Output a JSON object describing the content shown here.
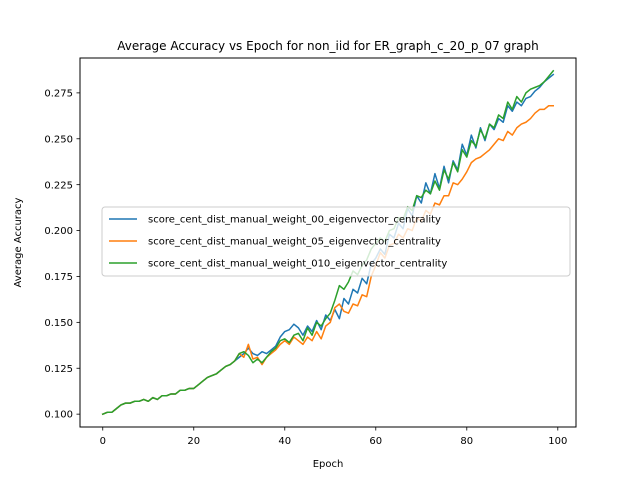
{
  "chart_data": {
    "type": "line",
    "title": "Average Accuracy vs Epoch for non_iid for ER_graph_c_20_p_07 graph",
    "xlabel": "Epoch",
    "ylabel": "Average Accuracy",
    "xlim": [
      -5,
      104
    ],
    "ylim": [
      0.093,
      0.294
    ],
    "xticks": [
      0,
      20,
      40,
      60,
      80,
      100
    ],
    "yticks": [
      0.1,
      0.125,
      0.15,
      0.175,
      0.2,
      0.225,
      0.25,
      0.275
    ],
    "ytick_labels": [
      "0.100",
      "0.125",
      "0.150",
      "0.175",
      "0.200",
      "0.225",
      "0.250",
      "0.275"
    ],
    "grid": false,
    "legend_position": "center-left",
    "x": [
      0,
      1,
      2,
      3,
      4,
      5,
      6,
      7,
      8,
      9,
      10,
      11,
      12,
      13,
      14,
      15,
      16,
      17,
      18,
      19,
      20,
      21,
      22,
      23,
      24,
      25,
      26,
      27,
      28,
      29,
      30,
      31,
      32,
      33,
      34,
      35,
      36,
      37,
      38,
      39,
      40,
      41,
      42,
      43,
      44,
      45,
      46,
      47,
      48,
      49,
      50,
      51,
      52,
      53,
      54,
      55,
      56,
      57,
      58,
      59,
      60,
      61,
      62,
      63,
      64,
      65,
      66,
      67,
      68,
      69,
      70,
      71,
      72,
      73,
      74,
      75,
      76,
      77,
      78,
      79,
      80,
      81,
      82,
      83,
      84,
      85,
      86,
      87,
      88,
      89,
      90,
      91,
      92,
      93,
      94,
      95,
      96,
      97,
      98,
      99
    ],
    "series": [
      {
        "name": "score_cent_dist_manual_weight_00_eigenvector_centrality",
        "color": "#1f77b4",
        "values": [
          0.1,
          0.101,
          0.101,
          0.103,
          0.105,
          0.106,
          0.106,
          0.107,
          0.107,
          0.108,
          0.107,
          0.109,
          0.108,
          0.11,
          0.11,
          0.111,
          0.111,
          0.113,
          0.113,
          0.114,
          0.114,
          0.116,
          0.118,
          0.12,
          0.121,
          0.122,
          0.124,
          0.126,
          0.127,
          0.129,
          0.131,
          0.133,
          0.136,
          0.133,
          0.132,
          0.134,
          0.133,
          0.135,
          0.137,
          0.142,
          0.145,
          0.146,
          0.149,
          0.147,
          0.143,
          0.148,
          0.145,
          0.151,
          0.146,
          0.154,
          0.151,
          0.157,
          0.152,
          0.163,
          0.16,
          0.168,
          0.166,
          0.174,
          0.171,
          0.182,
          0.185,
          0.19,
          0.187,
          0.198,
          0.196,
          0.204,
          0.201,
          0.212,
          0.208,
          0.219,
          0.215,
          0.226,
          0.22,
          0.231,
          0.223,
          0.235,
          0.226,
          0.238,
          0.233,
          0.247,
          0.241,
          0.252,
          0.245,
          0.256,
          0.249,
          0.258,
          0.255,
          0.261,
          0.259,
          0.268,
          0.265,
          0.27,
          0.268,
          0.272,
          0.273,
          0.276,
          0.278,
          0.281,
          0.283,
          0.285
        ]
      },
      {
        "name": "score_cent_dist_manual_weight_05_eigenvector_centrality",
        "color": "#ff7f0e",
        "values": [
          0.1,
          0.101,
          0.101,
          0.103,
          0.105,
          0.106,
          0.106,
          0.107,
          0.107,
          0.108,
          0.107,
          0.109,
          0.108,
          0.11,
          0.11,
          0.111,
          0.111,
          0.113,
          0.113,
          0.114,
          0.114,
          0.116,
          0.118,
          0.12,
          0.121,
          0.122,
          0.124,
          0.126,
          0.127,
          0.129,
          0.133,
          0.131,
          0.138,
          0.13,
          0.131,
          0.127,
          0.131,
          0.133,
          0.135,
          0.138,
          0.14,
          0.138,
          0.142,
          0.14,
          0.138,
          0.142,
          0.14,
          0.145,
          0.141,
          0.148,
          0.15,
          0.158,
          0.16,
          0.156,
          0.155,
          0.16,
          0.159,
          0.165,
          0.164,
          0.175,
          0.181,
          0.188,
          0.185,
          0.192,
          0.193,
          0.198,
          0.196,
          0.201,
          0.2,
          0.207,
          0.205,
          0.211,
          0.209,
          0.215,
          0.214,
          0.219,
          0.219,
          0.226,
          0.225,
          0.228,
          0.232,
          0.237,
          0.239,
          0.24,
          0.242,
          0.244,
          0.247,
          0.25,
          0.249,
          0.254,
          0.252,
          0.256,
          0.258,
          0.259,
          0.261,
          0.264,
          0.266,
          0.266,
          0.268,
          0.268
        ]
      },
      {
        "name": "score_cent_dist_manual_weight_010_eigenvector_centrality",
        "color": "#2ca02c",
        "values": [
          0.1,
          0.101,
          0.101,
          0.103,
          0.105,
          0.106,
          0.106,
          0.107,
          0.107,
          0.108,
          0.107,
          0.109,
          0.108,
          0.11,
          0.11,
          0.111,
          0.111,
          0.113,
          0.113,
          0.114,
          0.114,
          0.116,
          0.118,
          0.12,
          0.121,
          0.122,
          0.124,
          0.126,
          0.127,
          0.129,
          0.133,
          0.134,
          0.132,
          0.128,
          0.13,
          0.128,
          0.131,
          0.134,
          0.136,
          0.14,
          0.141,
          0.139,
          0.143,
          0.144,
          0.14,
          0.147,
          0.143,
          0.15,
          0.148,
          0.152,
          0.155,
          0.162,
          0.17,
          0.168,
          0.172,
          0.178,
          0.176,
          0.181,
          0.184,
          0.19,
          0.193,
          0.196,
          0.194,
          0.2,
          0.201,
          0.207,
          0.206,
          0.213,
          0.211,
          0.219,
          0.218,
          0.222,
          0.22,
          0.227,
          0.222,
          0.233,
          0.228,
          0.237,
          0.232,
          0.244,
          0.24,
          0.249,
          0.246,
          0.255,
          0.25,
          0.258,
          0.256,
          0.263,
          0.261,
          0.27,
          0.266,
          0.273,
          0.27,
          0.275,
          0.277,
          0.278,
          0.279,
          0.281,
          0.284,
          0.287
        ]
      }
    ]
  }
}
